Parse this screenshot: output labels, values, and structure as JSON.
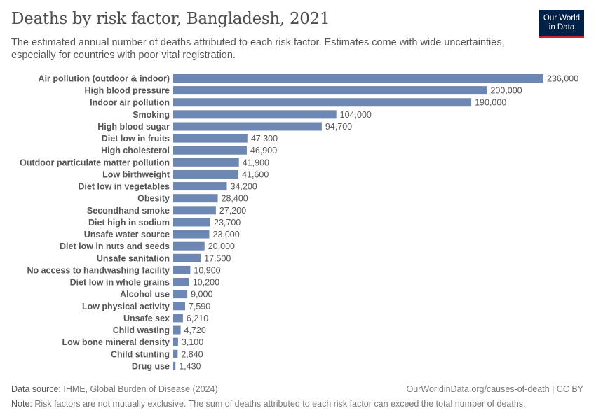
{
  "title": "Deaths by risk factor, Bangladesh, 2021",
  "subtitle": "The estimated annual number of deaths attributed to each risk factor. Estimates come with wide uncertainties, especially for countries with poor vital registration.",
  "logo": {
    "line1": "Our World",
    "line2": "in Data"
  },
  "footer": {
    "source_label": "Data source:",
    "source": "IHME, Global Burden of Disease (2024)",
    "url": "OurWorldinData.org/causes-of-death | CC BY",
    "note_label": "Note:",
    "note": "Risk factors are not mutually exclusive. The sum of deaths attributed to each risk factor can exceed the total number of deaths."
  },
  "colors": {
    "bar": "#6d87b4",
    "logo_bg": "#002147",
    "logo_accent": "#ce261e"
  },
  "chart_data": {
    "type": "bar",
    "orientation": "horizontal",
    "categories": [
      "Air pollution (outdoor & indoor)",
      "High blood pressure",
      "Indoor air pollution",
      "Smoking",
      "High blood sugar",
      "Diet low in fruits",
      "High cholesterol",
      "Outdoor particulate matter pollution",
      "Low birthweight",
      "Diet low in vegetables",
      "Obesity",
      "Secondhand smoke",
      "Diet high in sodium",
      "Unsafe water source",
      "Diet low in nuts and seeds",
      "Unsafe sanitation",
      "No access to handwashing facility",
      "Diet low in whole grains",
      "Alcohol use",
      "Low physical activity",
      "Unsafe sex",
      "Child wasting",
      "Low bone mineral density",
      "Child stunting",
      "Drug use"
    ],
    "values": [
      236000,
      200000,
      190000,
      104000,
      94700,
      47300,
      46900,
      41900,
      41600,
      34200,
      28400,
      27200,
      23700,
      23000,
      20000,
      17500,
      10900,
      10200,
      9000,
      7590,
      6210,
      4720,
      3100,
      2840,
      1430
    ],
    "labels": [
      "236,000",
      "200,000",
      "190,000",
      "104,000",
      "94,700",
      "47,300",
      "46,900",
      "41,900",
      "41,600",
      "34,200",
      "28,400",
      "27,200",
      "23,700",
      "23,000",
      "20,000",
      "17,500",
      "10,900",
      "10,200",
      "9,000",
      "7,590",
      "6,210",
      "4,720",
      "3,100",
      "2,840",
      "1,430"
    ],
    "xlim": [
      0,
      236000
    ],
    "grid": false
  }
}
